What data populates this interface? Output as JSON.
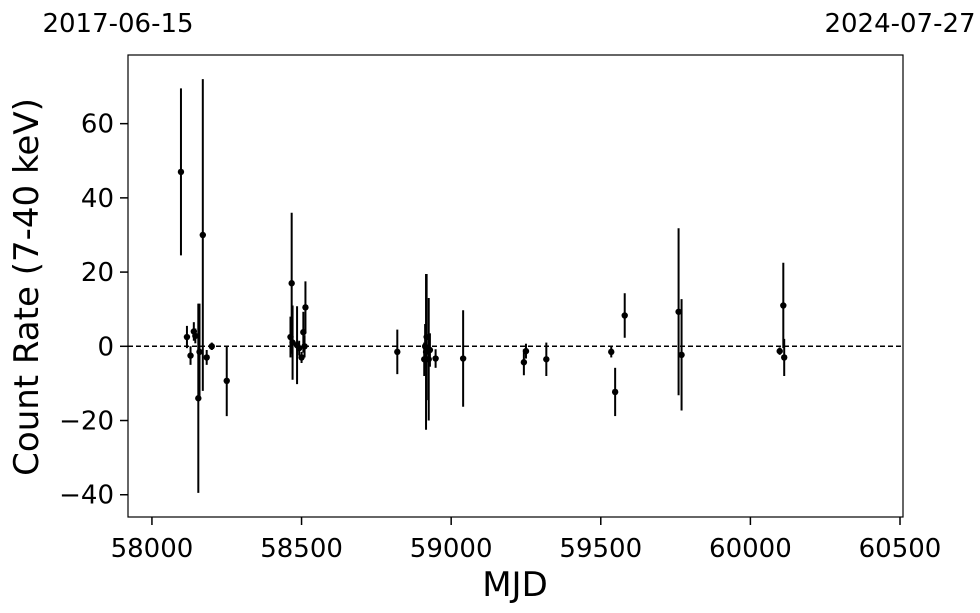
{
  "chart_data": {
    "type": "scatter",
    "title": "",
    "xlabel": "MJD",
    "ylabel": "Count Rate (7-40 keV)",
    "xlim": [
      57920,
      60510
    ],
    "ylim": [
      -46,
      78.5
    ],
    "xticks": [
      58000,
      58500,
      59000,
      59500,
      60000,
      60500
    ],
    "yticks": [
      -40,
      -20,
      0,
      20,
      40,
      60
    ],
    "xtick_labels": [
      "58000",
      "58500",
      "59000",
      "59500",
      "60000",
      "60500"
    ],
    "ytick_labels": [
      "−40",
      "−20",
      "0",
      "20",
      "40",
      "60"
    ],
    "top_labels": [
      {
        "text": "2017-06-15",
        "x": 57920
      },
      {
        "text": "2024-07-27",
        "x": 60510
      }
    ],
    "reference_line": {
      "y": 0,
      "style": "dashed"
    },
    "grid": false,
    "marker_color": "#000000",
    "points": [
      {
        "x": 58097,
        "y": 47.0,
        "err": 22.5
      },
      {
        "x": 58117,
        "y": 2.5,
        "err": 3.0
      },
      {
        "x": 58129,
        "y": -2.5,
        "err": 2.5
      },
      {
        "x": 58140,
        "y": 4.0,
        "err": 2.5
      },
      {
        "x": 58145,
        "y": 2.8,
        "err": 2.0
      },
      {
        "x": 58155,
        "y": -14.0,
        "err": 25.5
      },
      {
        "x": 58159,
        "y": -1.5,
        "err": 13.0
      },
      {
        "x": 58170,
        "y": 30.0,
        "err": 42.0
      },
      {
        "x": 58183,
        "y": -3.0,
        "err": 2.0
      },
      {
        "x": 58200,
        "y": 0.0,
        "err": 1.0
      },
      {
        "x": 58250,
        "y": -9.3,
        "err": 9.5
      },
      {
        "x": 58463,
        "y": 2.5,
        "err": 5.5
      },
      {
        "x": 58467,
        "y": 17.0,
        "err": 19.0
      },
      {
        "x": 58470,
        "y": 1.0,
        "err": 10.0
      },
      {
        "x": 58485,
        "y": 0.3,
        "err": 10.5
      },
      {
        "x": 58492,
        "y": -0.5,
        "err": 2.0
      },
      {
        "x": 58500,
        "y": -3.0,
        "err": 1.5
      },
      {
        "x": 58506,
        "y": 3.8,
        "err": 5.5
      },
      {
        "x": 58510,
        "y": 0.0,
        "err": 3.0
      },
      {
        "x": 58513,
        "y": 10.5,
        "err": 7.0
      },
      {
        "x": 58820,
        "y": -1.5,
        "err": 6.0
      },
      {
        "x": 58910,
        "y": -3.5,
        "err": 4.5
      },
      {
        "x": 58913,
        "y": 0.0,
        "err": 6.0
      },
      {
        "x": 58916,
        "y": -1.5,
        "err": 21.0
      },
      {
        "x": 58918,
        "y": 2.5,
        "err": 17.0
      },
      {
        "x": 58925,
        "y": -3.5,
        "err": 16.5
      },
      {
        "x": 58929,
        "y": -1.0,
        "err": 4.5
      },
      {
        "x": 58948,
        "y": -3.3,
        "err": 2.5
      },
      {
        "x": 59040,
        "y": -3.3,
        "err": 13.0
      },
      {
        "x": 59243,
        "y": -4.3,
        "err": 3.5
      },
      {
        "x": 59250,
        "y": -1.3,
        "err": 2.0
      },
      {
        "x": 59318,
        "y": -3.5,
        "err": 4.5
      },
      {
        "x": 59535,
        "y": -1.5,
        "err": 1.5
      },
      {
        "x": 59548,
        "y": -12.3,
        "err": 6.5
      },
      {
        "x": 59580,
        "y": 8.3,
        "err": 6.0
      },
      {
        "x": 59760,
        "y": 9.3,
        "err": 22.5
      },
      {
        "x": 59770,
        "y": -2.3,
        "err": 15.0
      },
      {
        "x": 60098,
        "y": -1.3,
        "err": 1.0
      },
      {
        "x": 60110,
        "y": 11.0,
        "err": 11.5
      },
      {
        "x": 60113,
        "y": -3.0,
        "err": 5.0
      }
    ]
  }
}
